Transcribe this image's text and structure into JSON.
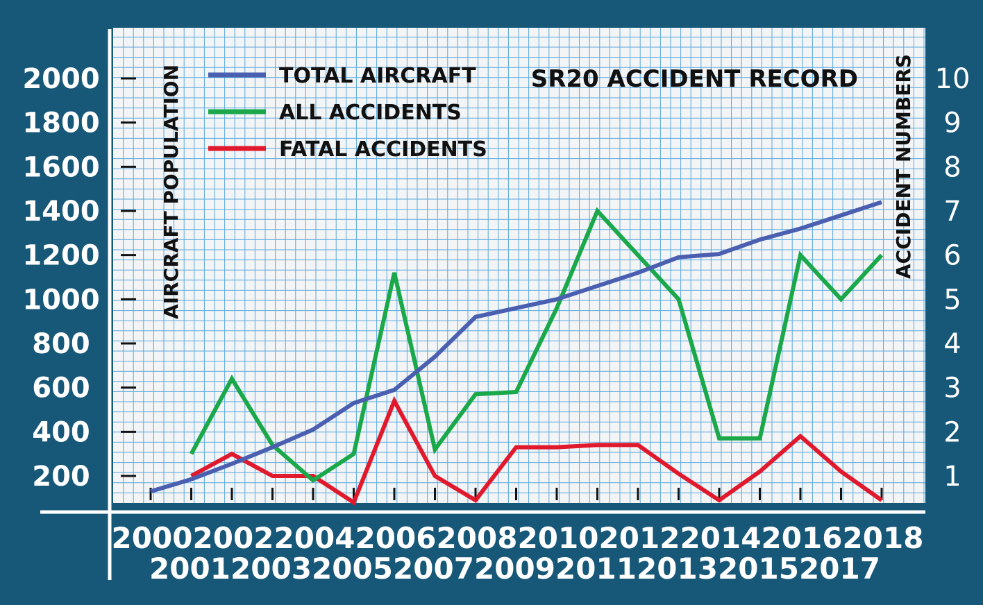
{
  "colors": {
    "background": "#175778",
    "plot_background": "#f2f4f6",
    "grid": "#5aa8dc",
    "total_aircraft": "#4a5fb0",
    "all_accidents": "#1aa84a",
    "fatal_accidents": "#e0192c"
  },
  "chart_data": {
    "type": "line",
    "title": "SR20 ACCIDENT RECORD",
    "ylabel_left": "AIRCRAFT POPULATION",
    "ylabel_right": "ACCIDENT NUMBERS",
    "grid": true,
    "legend_placement": "top-left",
    "x": [
      2000,
      2001,
      2002,
      2003,
      2004,
      2005,
      2006,
      2007,
      2008,
      2009,
      2010,
      2011,
      2012,
      2013,
      2014,
      2015,
      2016,
      2017,
      2018
    ],
    "x_tick_labels_top": [
      "2000",
      "2002",
      "2004",
      "2006",
      "2008",
      "2010",
      "2012",
      "2014",
      "2016",
      "2018"
    ],
    "x_tick_labels_bottom": [
      "2001",
      "2003",
      "2005",
      "2007",
      "2009",
      "2011",
      "2013",
      "2015",
      "2017"
    ],
    "y_left": {
      "ticks": [
        200,
        400,
        600,
        800,
        1000,
        1200,
        1400,
        1600,
        1800,
        2000
      ],
      "tick_labels": [
        "200",
        "400",
        "600",
        "800",
        "1000",
        "1200",
        "1400",
        "1600",
        "1800",
        "2000"
      ]
    },
    "y_right": {
      "ticks": [
        1,
        2,
        3,
        4,
        5,
        6,
        7,
        8,
        9,
        10
      ],
      "tick_labels": [
        "1",
        "2",
        "3",
        "4",
        "5",
        "6",
        "7",
        "8",
        "9",
        "10"
      ]
    },
    "series": [
      {
        "name": "TOTAL AIRCRAFT",
        "axis": "left",
        "color": "#4a5fb0",
        "x": [
          2000,
          2001,
          2002,
          2003,
          2004,
          2005,
          2006,
          2007,
          2008,
          2009,
          2010,
          2011,
          2012,
          2013,
          2014,
          2015,
          2016,
          2017,
          2018
        ],
        "values": [
          130,
          185,
          255,
          330,
          410,
          530,
          590,
          740,
          920,
          960,
          1000,
          1060,
          1120,
          1190,
          1205,
          1270,
          1320,
          1380,
          1440
        ]
      },
      {
        "name": "ALL ACCIDENTS",
        "axis": "right",
        "color": "#1aa84a",
        "x": [
          2001,
          2002,
          2003,
          2004,
          2005,
          2006,
          2007,
          2008,
          2009,
          2010,
          2011,
          2012,
          2013,
          2014,
          2015,
          2016,
          2017,
          2018
        ],
        "values": [
          1.5,
          3.2,
          1.7,
          0.9,
          1.5,
          5.6,
          1.6,
          2.85,
          2.9,
          4.8,
          7.0,
          6.0,
          5.0,
          1.85,
          1.85,
          6.0,
          5.0,
          6.0
        ]
      },
      {
        "name": "FATAL ACCIDENTS",
        "axis": "right",
        "color": "#e0192c",
        "x": [
          2001,
          2002,
          2003,
          2004,
          2005,
          2006,
          2007,
          2008,
          2009,
          2010,
          2011,
          2012,
          2013,
          2014,
          2015,
          2016,
          2017,
          2018
        ],
        "values": [
          1.0,
          1.5,
          1.0,
          1.0,
          0.4,
          2.7,
          1.0,
          0.45,
          1.65,
          1.65,
          1.7,
          1.7,
          1.05,
          0.45,
          1.1,
          1.9,
          1.1,
          0.45
        ]
      }
    ]
  }
}
